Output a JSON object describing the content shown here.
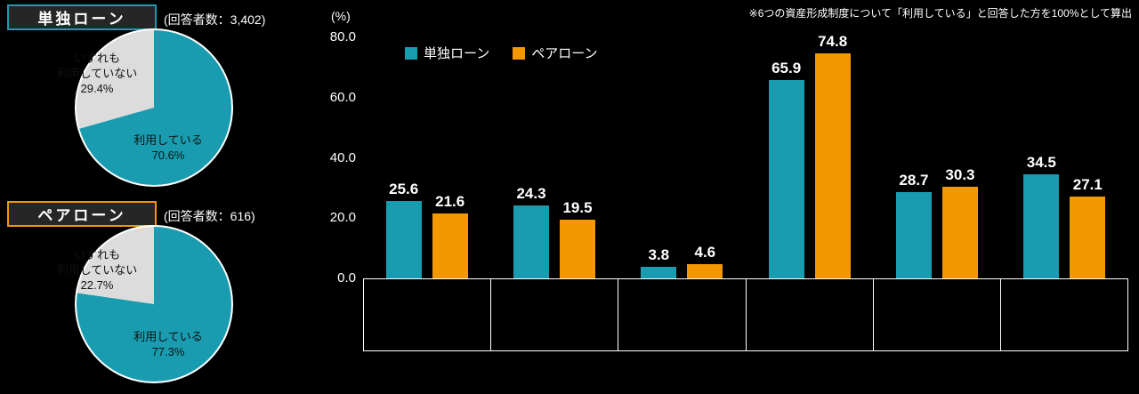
{
  "note": "※6つの資産形成制度について「利用している」と回答した方を100%として算出",
  "colors": {
    "teal": "#1A9CB0",
    "orange": "#F39800",
    "pie_gray": "#DCDCDC",
    "background": "#000000",
    "text": "#FFFFFF"
  },
  "pies": [
    {
      "label": "単独ローン",
      "respondents": "(回答者数：3,402)",
      "using_label": "利用している",
      "using_value": "70.6%",
      "using_pct": 70.6,
      "not_using_label": "いずれも\n利用していない",
      "not_using_value": "29.4%",
      "accent": "#1A9CB0"
    },
    {
      "label": "ペアローン",
      "respondents": "(回答者数：616)",
      "using_label": "利用している",
      "using_value": "77.3%",
      "using_pct": 77.3,
      "not_using_label": "いずれも\n利用していない",
      "not_using_value": "22.7%",
      "accent": "#F39800"
    }
  ],
  "chart_data": {
    "type": "bar",
    "title": "",
    "xlabel": "",
    "ylabel": "(%)",
    "ylim": [
      0,
      80
    ],
    "yticks": [
      "80.0",
      "60.0",
      "40.0",
      "20.0",
      "0.0"
    ],
    "grid": false,
    "legend_position": "top-left",
    "categories": [
      "",
      "",
      "",
      "",
      "",
      ""
    ],
    "series": [
      {
        "name": "単独ローン",
        "color": "#1A9CB0",
        "values": [
          25.6,
          24.3,
          3.8,
          65.9,
          28.7,
          34.5
        ]
      },
      {
        "name": "ペアローン",
        "color": "#F39800",
        "values": [
          21.6,
          19.5,
          4.6,
          74.8,
          30.3,
          27.1
        ]
      }
    ]
  }
}
